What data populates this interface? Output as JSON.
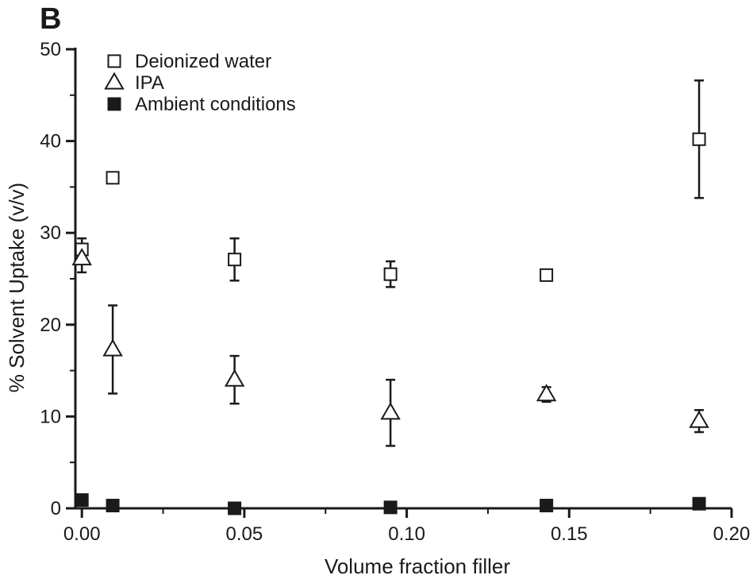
{
  "chart_data": {
    "type": "scatter",
    "panel_label": "B",
    "xlabel": "Volume fraction filler",
    "ylabel": "% Solvent Uptake (v/v)",
    "xlim": [
      -0.002,
      0.2
    ],
    "ylim": [
      0,
      50
    ],
    "x_ticks": [
      0.0,
      0.05,
      0.1,
      0.15,
      0.2
    ],
    "x_tick_labels": [
      "0.00",
      "0.05",
      "0.10",
      "0.15",
      "0.20"
    ],
    "y_ticks": [
      0,
      10,
      20,
      30,
      40,
      50
    ],
    "y_tick_labels": [
      "0",
      "10",
      "20",
      "30",
      "40",
      "50"
    ],
    "grid": false,
    "legend_position": "top-left",
    "series": [
      {
        "name": "Deionized water",
        "marker": "open-square",
        "points": [
          {
            "x": 0.0,
            "y": 28.2,
            "err": 1.2
          },
          {
            "x": 0.0095,
            "y": 36.0,
            "err": 0.6
          },
          {
            "x": 0.047,
            "y": 27.1,
            "err": 2.3
          },
          {
            "x": 0.095,
            "y": 25.5,
            "err": 1.4
          },
          {
            "x": 0.143,
            "y": 25.4,
            "err": 0.3
          },
          {
            "x": 0.19,
            "y": 40.2,
            "err": 6.4
          }
        ]
      },
      {
        "name": "IPA",
        "marker": "open-triangle",
        "points": [
          {
            "x": 0.0,
            "y": 27.2,
            "err": 1.5
          },
          {
            "x": 0.0095,
            "y": 17.3,
            "err": 4.8
          },
          {
            "x": 0.047,
            "y": 14.0,
            "err": 2.6
          },
          {
            "x": 0.095,
            "y": 10.4,
            "err": 3.6
          },
          {
            "x": 0.143,
            "y": 12.4,
            "err": 0.8
          },
          {
            "x": 0.19,
            "y": 9.5,
            "err": 1.2
          }
        ]
      },
      {
        "name": "Ambient conditions",
        "marker": "filled-square",
        "points": [
          {
            "x": 0.0,
            "y": 0.9,
            "err": 0
          },
          {
            "x": 0.0095,
            "y": 0.3,
            "err": 0
          },
          {
            "x": 0.047,
            "y": 0.0,
            "err": 0
          },
          {
            "x": 0.095,
            "y": 0.1,
            "err": 0
          },
          {
            "x": 0.143,
            "y": 0.3,
            "err": 0
          },
          {
            "x": 0.19,
            "y": 0.5,
            "err": 0
          }
        ]
      }
    ]
  }
}
